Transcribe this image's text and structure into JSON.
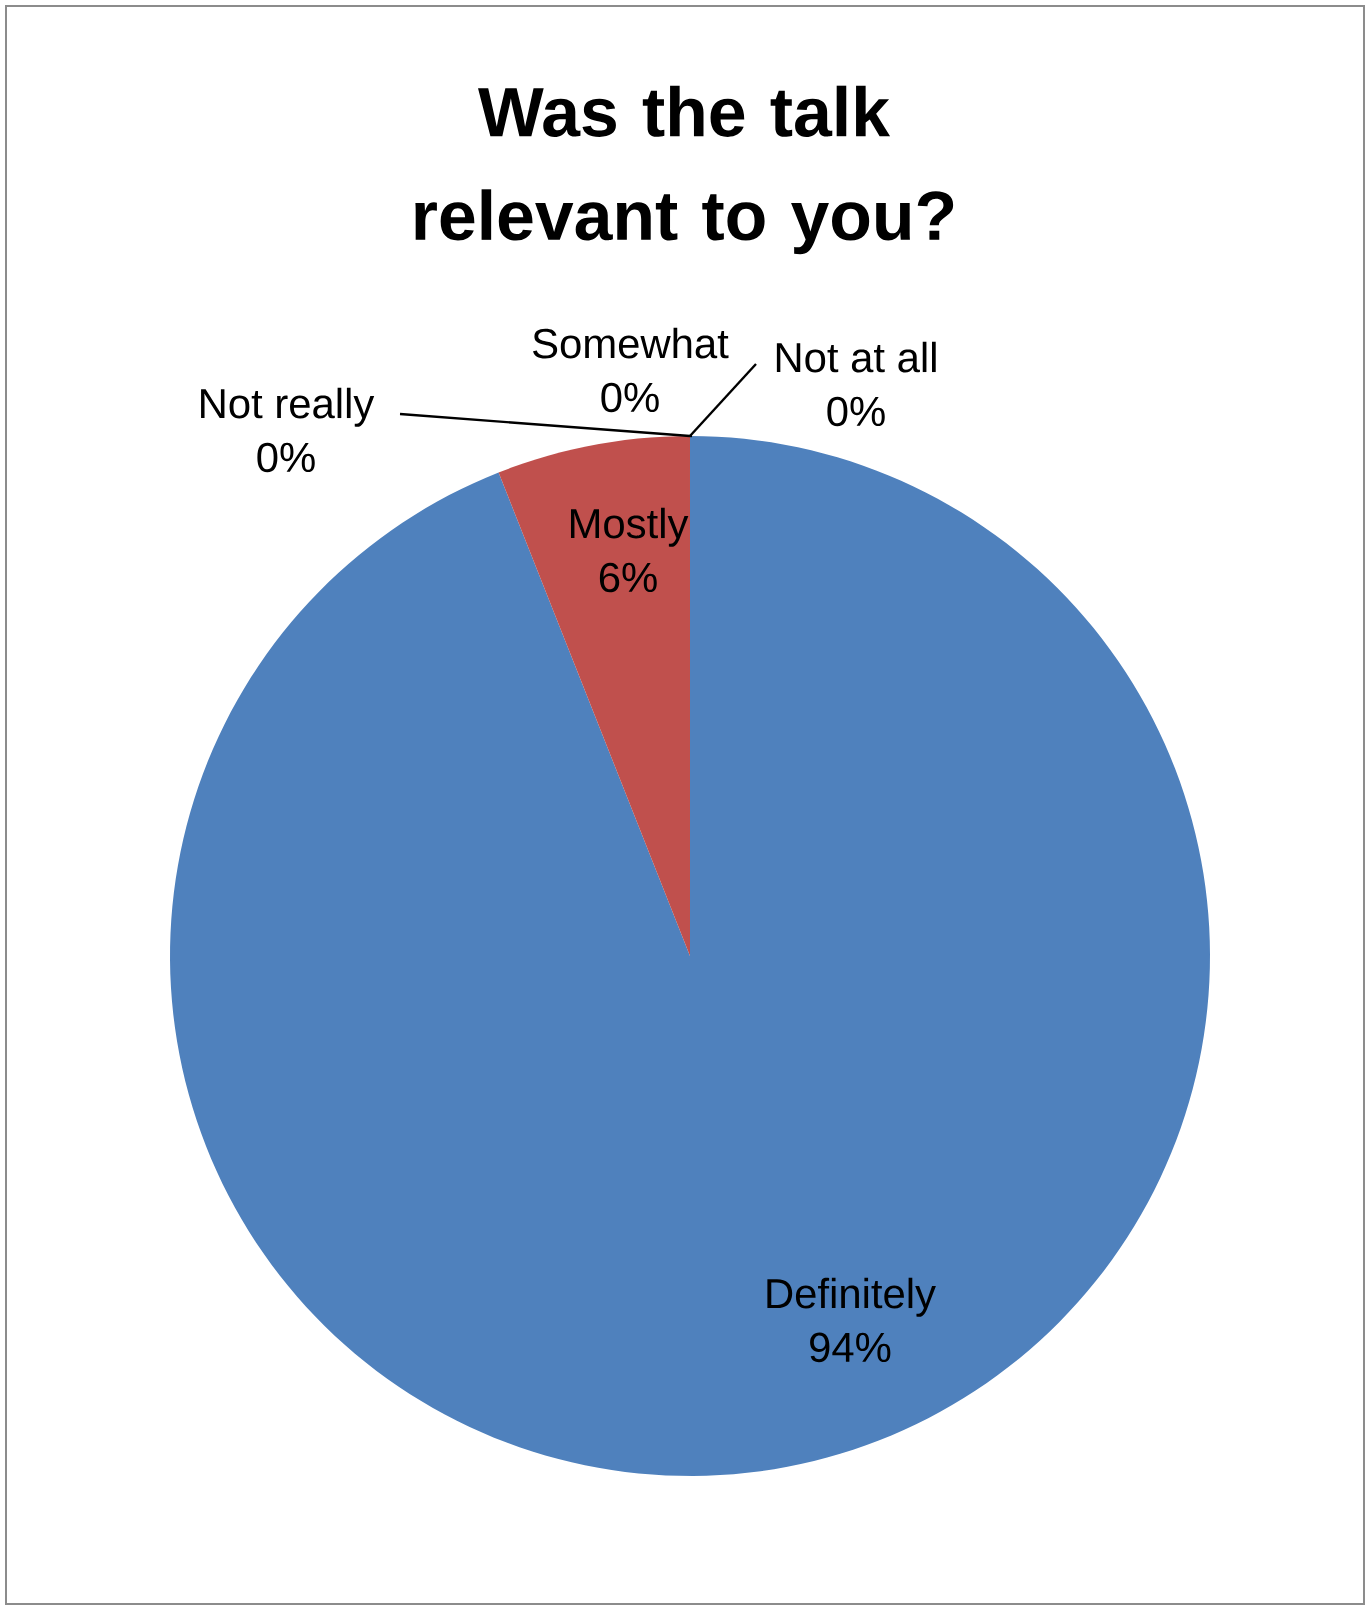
{
  "chart_data": {
    "type": "pie",
    "title": "Was the talk relevant to you?",
    "categories": [
      "Definitely",
      "Mostly",
      "Not really",
      "Somewhat",
      "Not at all"
    ],
    "values": [
      94,
      6,
      0,
      0,
      0
    ],
    "colors": [
      "#4f81bd",
      "#c0504d",
      "#9bbb59",
      "#8064a2",
      "#4bacc6"
    ],
    "value_labels": [
      "94%",
      "6%",
      "0%",
      "0%",
      "0%"
    ],
    "legend": false
  }
}
